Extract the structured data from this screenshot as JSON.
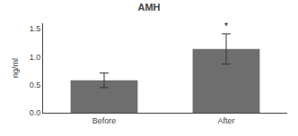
{
  "chart_data": {
    "type": "bar",
    "title": "AMH",
    "categories": [
      "Before",
      "After"
    ],
    "values": [
      0.58,
      1.14
    ],
    "errors": [
      0.13,
      0.27
    ],
    "color": "#6e6e6e",
    "ylabel": "ng/ml",
    "ylim": [
      0,
      1.6
    ],
    "yticks": [
      {
        "value": 0,
        "label": "0.0"
      },
      0.5,
      {
        "value": 1,
        "label": "1.0"
      },
      1.5
    ],
    "annotations": [
      {
        "text": "*",
        "category": "After",
        "y": 1.43
      }
    ],
    "grid": false
  }
}
